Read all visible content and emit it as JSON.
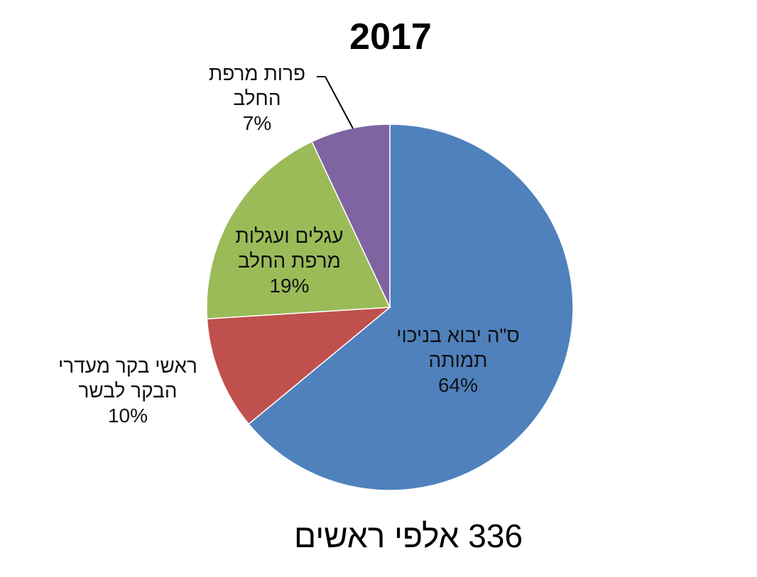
{
  "chart_data": {
    "type": "pie",
    "title": "2017",
    "slices": [
      {
        "label_lines": [
          "ס\"ה יבוא בניכוי",
          "תמותה"
        ],
        "value": 64,
        "value_label": "64%",
        "color": "#4F81BD"
      },
      {
        "label_lines": [
          "ראשי בקר מעדרי",
          "הבקר לבשר"
        ],
        "value": 10,
        "value_label": "10%",
        "color": "#C0504D"
      },
      {
        "label_lines": [
          "עגלים ועגלות",
          "מרפת החלב"
        ],
        "value": 19,
        "value_label": "19%",
        "color": "#9BBB59"
      },
      {
        "label_lines": [
          "פרות מרפת",
          "החלב"
        ],
        "value": 7,
        "value_label": "7%",
        "color": "#8064A2"
      }
    ],
    "footer": "336 אלפי ראשים"
  }
}
